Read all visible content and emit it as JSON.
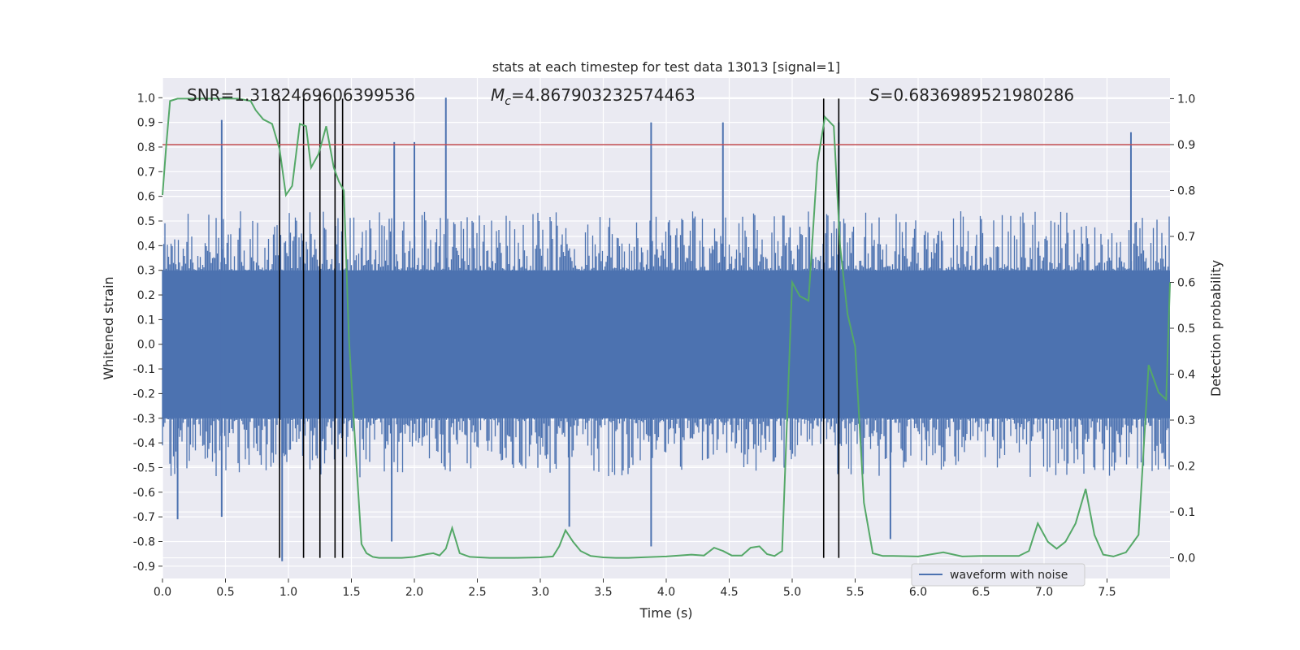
{
  "chart_data": {
    "type": "line",
    "title": "stats at each timestep for test data 13013 [signal=1]",
    "xlabel": "Time (s)",
    "ylabel_left": "Whitened strain",
    "ylabel_right": "Detection probability",
    "xlim": [
      0.0,
      8.0
    ],
    "ylim_left": [
      -0.95,
      1.08
    ],
    "ylim_right": [
      -0.045,
      1.045
    ],
    "x_ticks": [
      "0.0",
      "0.5",
      "1.0",
      "1.5",
      "2.0",
      "2.5",
      "3.0",
      "3.5",
      "4.0",
      "4.5",
      "5.0",
      "5.5",
      "6.0",
      "6.5",
      "7.0",
      "7.5"
    ],
    "y_ticks_left": [
      "1.0",
      "0.9",
      "0.8",
      "0.7",
      "0.6",
      "0.5",
      "0.4",
      "0.3",
      "0.2",
      "0.1",
      "0.0",
      "-0.1",
      "-0.2",
      "-0.3",
      "-0.4",
      "-0.5",
      "-0.6",
      "-0.7",
      "-0.8",
      "-0.9"
    ],
    "y_ticks_right": [
      "1.0",
      "0.9",
      "0.8",
      "0.7",
      "0.6",
      "0.5",
      "0.4",
      "0.3",
      "0.2",
      "0.1",
      "0.0"
    ],
    "annotations": {
      "snr": "SNR=1.3182469606399536",
      "mc_symbol": "M",
      "mc_sub": "c",
      "mc_value": "=4.867903232574463",
      "s_symbol": "S",
      "s_value": "=0.6836989521980286"
    },
    "legend": {
      "label": "waveform with noise",
      "placement": "lower-right"
    },
    "threshold": {
      "axis": "right",
      "value": 0.9,
      "color": "#c44e52"
    },
    "event_markers_x": [
      0.93,
      1.12,
      1.25,
      1.37,
      1.43,
      5.25,
      5.37
    ],
    "noise_spikes": [
      {
        "x": 0.47,
        "v": 0.91
      },
      {
        "x": 1.84,
        "v": 0.82
      },
      {
        "x": 2.0,
        "v": 0.82
      },
      {
        "x": 2.25,
        "v": 1.0
      },
      {
        "x": 3.88,
        "v": 0.9
      },
      {
        "x": 4.45,
        "v": 0.9
      },
      {
        "x": 5.37,
        "v": 0.9
      },
      {
        "x": 7.69,
        "v": 0.86
      },
      {
        "x": 0.95,
        "v": -0.88
      },
      {
        "x": 3.88,
        "v": -0.82
      },
      {
        "x": 1.82,
        "v": -0.8
      },
      {
        "x": 5.78,
        "v": -0.79
      },
      {
        "x": 0.12,
        "v": -0.71
      },
      {
        "x": 0.47,
        "v": -0.7
      },
      {
        "x": 3.23,
        "v": -0.74
      }
    ],
    "series": [
      {
        "name": "waveform with noise",
        "axis": "left",
        "color": "#4c72b0",
        "band_envelope": 0.3,
        "typical_peak": 0.45
      },
      {
        "name": "detection probability",
        "axis": "right",
        "color": "#55a868",
        "x": [
          0.0,
          0.03,
          0.06,
          0.12,
          0.2,
          0.3,
          0.45,
          0.6,
          0.7,
          0.74,
          0.8,
          0.87,
          0.93,
          0.98,
          1.03,
          1.09,
          1.14,
          1.18,
          1.24,
          1.3,
          1.36,
          1.4,
          1.44,
          1.48,
          1.53,
          1.58,
          1.62,
          1.67,
          1.72,
          1.8,
          1.9,
          2.0,
          2.1,
          2.15,
          2.2,
          2.25,
          2.3,
          2.36,
          2.44,
          2.52,
          2.6,
          2.8,
          3.0,
          3.1,
          3.15,
          3.2,
          3.26,
          3.32,
          3.4,
          3.5,
          3.6,
          3.7,
          3.8,
          4.0,
          4.2,
          4.3,
          4.38,
          4.45,
          4.52,
          4.6,
          4.67,
          4.74,
          4.8,
          4.86,
          4.92,
          5.0,
          5.06,
          5.13,
          5.2,
          5.26,
          5.33,
          5.38,
          5.44,
          5.5,
          5.57,
          5.64,
          5.72,
          5.8,
          6.0,
          6.2,
          6.35,
          6.5,
          6.7,
          6.8,
          6.88,
          6.95,
          7.03,
          7.1,
          7.17,
          7.25,
          7.33,
          7.4,
          7.47,
          7.55,
          7.65,
          7.75,
          7.83,
          7.91,
          7.97,
          8.0
        ],
        "values": [
          0.79,
          0.9,
          0.995,
          1.0,
          1.0,
          1.0,
          1.0,
          1.0,
          0.995,
          0.975,
          0.955,
          0.945,
          0.89,
          0.79,
          0.81,
          0.945,
          0.94,
          0.85,
          0.88,
          0.94,
          0.85,
          0.82,
          0.8,
          0.48,
          0.25,
          0.03,
          0.01,
          0.002,
          0.0,
          0.0,
          0.0,
          0.002,
          0.008,
          0.01,
          0.005,
          0.02,
          0.065,
          0.01,
          0.002,
          0.001,
          0.0,
          0.0,
          0.001,
          0.003,
          0.025,
          0.06,
          0.035,
          0.015,
          0.004,
          0.001,
          0.0,
          0.0,
          0.001,
          0.003,
          0.007,
          0.005,
          0.022,
          0.015,
          0.005,
          0.005,
          0.022,
          0.025,
          0.008,
          0.004,
          0.015,
          0.6,
          0.57,
          0.56,
          0.86,
          0.96,
          0.94,
          0.68,
          0.53,
          0.46,
          0.12,
          0.01,
          0.004,
          0.004,
          0.003,
          0.012,
          0.003,
          0.004,
          0.004,
          0.004,
          0.015,
          0.075,
          0.035,
          0.02,
          0.035,
          0.075,
          0.15,
          0.05,
          0.007,
          0.003,
          0.012,
          0.05,
          0.42,
          0.36,
          0.345,
          0.6
        ]
      }
    ]
  }
}
